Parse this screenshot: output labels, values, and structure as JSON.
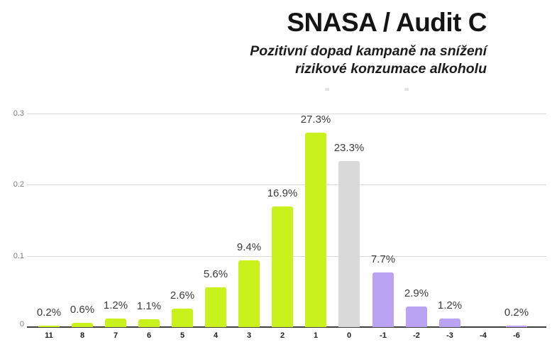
{
  "header": {
    "subtitle_lines": [
      "Pozitivní dopad kampaně na snížení",
      "rizikové konzumace alkoholu"
    ]
  },
  "legend": {
    "marks": [
      "legend-mark-left",
      "legend-mark-right"
    ]
  },
  "chart_data": {
    "type": "bar",
    "title": "SNASA / Audit C",
    "subtitle": "Pozitivní dopad kampaně na snížení rizikové konzumace alkoholu",
    "categories": [
      "11",
      "8",
      "7",
      "6",
      "5",
      "4",
      "3",
      "2",
      "1",
      "0",
      "-1",
      "-2",
      "-3",
      "-4",
      "-6"
    ],
    "values_percent": [
      0.2,
      0.6,
      1.2,
      1.1,
      2.6,
      5.6,
      9.4,
      16.9,
      27.3,
      23.3,
      7.7,
      2.9,
      1.2,
      null,
      0.2
    ],
    "bar_labels": [
      "0.2%",
      "0.6%",
      "1.2%",
      "1.1%",
      "2.6%",
      "5.6%",
      "9.4%",
      "16.9%",
      "27.3%",
      "23.3%",
      "7.7%",
      "2.9%",
      "1.2%",
      "",
      "0.2%"
    ],
    "groups": [
      "positive",
      "positive",
      "positive",
      "positive",
      "positive",
      "positive",
      "positive",
      "positive",
      "positive",
      "zero",
      "negative",
      "negative",
      "negative",
      "negative",
      "negative"
    ],
    "colors": {
      "positive": "#c9f21c",
      "zero": "#d9d9d9",
      "negative": "#b9a3f2",
      "grid": "#d9d9d9",
      "axis": "#3f3f3f",
      "bar_label_text": "#3a3a3a",
      "x_tick_text": "#1d1d1d",
      "y_tick_text": "#7d7d7d"
    },
    "xlabel": "",
    "ylabel": "",
    "y_axis": {
      "range": [
        0,
        0.3
      ],
      "ticks": [
        0,
        0.1,
        0.2,
        0.3
      ],
      "tick_labels": [
        "0",
        "0.1",
        "0.2",
        "0.3"
      ]
    },
    "grid": true,
    "legend_position": "top"
  }
}
